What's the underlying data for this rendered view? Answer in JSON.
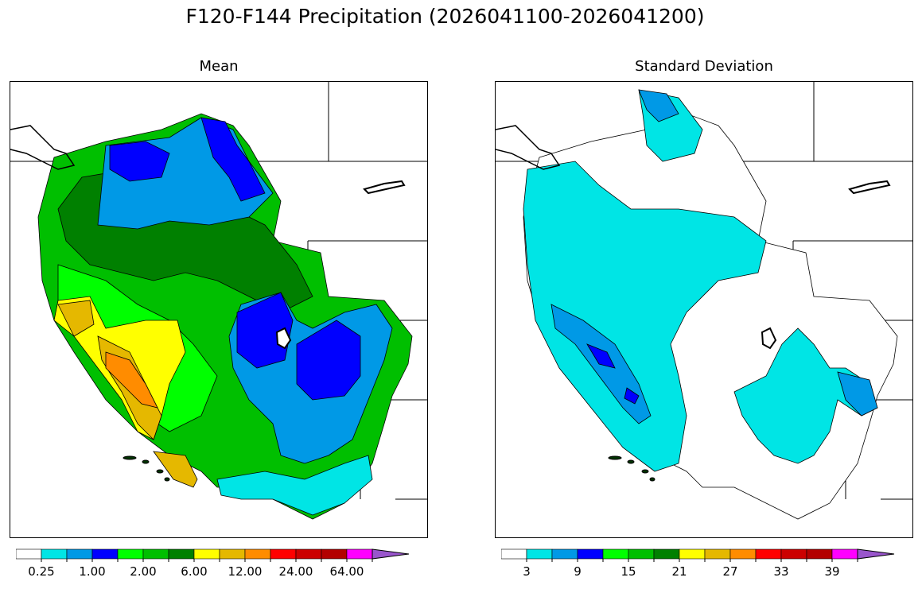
{
  "title": "F120-F144 Precipitation (2026041100-2026041200)",
  "panels": {
    "mean": {
      "title": "Mean"
    },
    "std": {
      "title": "Standard Deviation"
    }
  },
  "colorbar": {
    "colors": [
      "#ffffff",
      "#00e5e5",
      "#0099e6",
      "#0000ff",
      "#00ff00",
      "#00bf00",
      "#008000",
      "#ffff00",
      "#e5b800",
      "#ff8c00",
      "#ff0000",
      "#cc0000",
      "#b30000",
      "#ff00ff",
      "#9955cc"
    ],
    "mean_labels": [
      "0.25",
      "1.00",
      "2.00",
      "6.00",
      "12.00",
      "24.00",
      "64.00"
    ],
    "std_labels": [
      "3",
      "9",
      "15",
      "21",
      "27",
      "33",
      "39"
    ]
  }
}
